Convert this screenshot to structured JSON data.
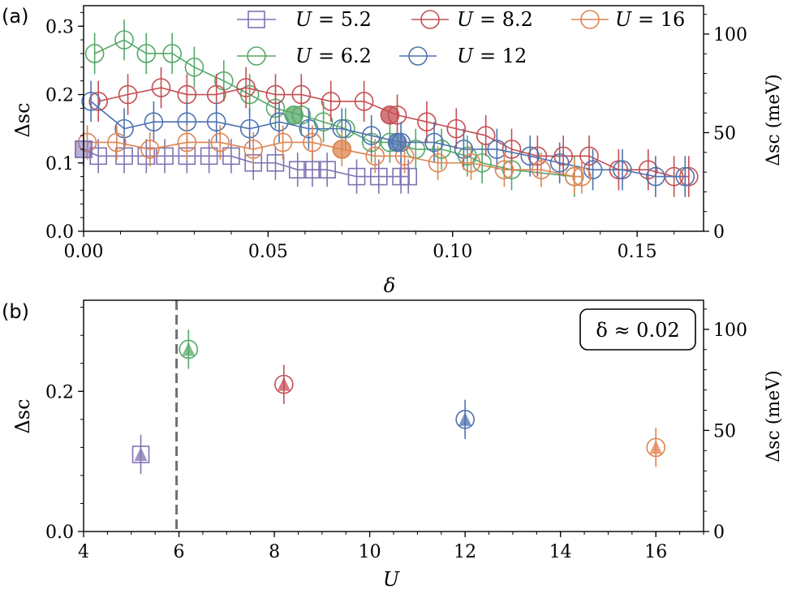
{
  "chart_data": [
    {
      "panel": "(a)",
      "type": "line",
      "xlabel": "δ",
      "ylabel": "Δsc",
      "ylabel_right": "Δsc (meV)",
      "xlim": [
        0.0,
        0.168
      ],
      "ylim": [
        0.0,
        0.33
      ],
      "ylim_right_meV": [
        0,
        113.3
      ],
      "x_ticks": [
        "0.00",
        "0.05",
        "0.10",
        "0.15"
      ],
      "x_tick_values": [
        0.0,
        0.05,
        0.1,
        0.15
      ],
      "y_ticks": [
        "0.0",
        "0.1",
        "0.2",
        "0.3"
      ],
      "y_tick_values": [
        0.0,
        0.1,
        0.2,
        0.3
      ],
      "y_right_ticks": [
        "0",
        "50",
        "100"
      ],
      "y_right_tick_values": [
        0,
        50,
        100
      ],
      "legend_position": "top",
      "series": [
        {
          "name": "U = 5.2",
          "label": "U",
          "value": "= 5.2",
          "color": "#8172b3",
          "marker": "square",
          "err": 0.025,
          "x": [
            0.0,
            0.004,
            0.011,
            0.017,
            0.022,
            0.028,
            0.034,
            0.04,
            0.046,
            0.052,
            0.058,
            0.062,
            0.066,
            0.074,
            0.08,
            0.086,
            0.088
          ],
          "y": [
            0.12,
            0.11,
            0.11,
            0.11,
            0.11,
            0.11,
            0.11,
            0.11,
            0.1,
            0.1,
            0.09,
            0.09,
            0.09,
            0.08,
            0.08,
            0.08,
            0.08
          ]
        },
        {
          "name": "U = 6.2",
          "label": "U",
          "value": "= 6.2",
          "color": "#55a868",
          "marker": "circle",
          "err": 0.03,
          "x": [
            0.003,
            0.011,
            0.017,
            0.024,
            0.03,
            0.038,
            0.045,
            0.052,
            0.059,
            0.065,
            0.071,
            0.078,
            0.083,
            0.09,
            0.097,
            0.104,
            0.108,
            0.116,
            0.133
          ],
          "y": [
            0.26,
            0.28,
            0.26,
            0.26,
            0.24,
            0.22,
            0.2,
            0.18,
            0.17,
            0.16,
            0.15,
            0.13,
            0.13,
            0.12,
            0.12,
            0.11,
            0.1,
            0.09,
            0.08
          ]
        },
        {
          "name": "U = 8.2",
          "label": "U",
          "value": "= 8.2",
          "color": "#c44e52",
          "marker": "circle",
          "err": 0.03,
          "x": [
            0.004,
            0.012,
            0.021,
            0.028,
            0.036,
            0.044,
            0.052,
            0.059,
            0.067,
            0.076,
            0.085,
            0.093,
            0.101,
            0.109,
            0.116,
            0.123,
            0.13,
            0.137,
            0.145,
            0.153,
            0.16,
            0.164
          ],
          "y": [
            0.19,
            0.2,
            0.21,
            0.2,
            0.2,
            0.21,
            0.2,
            0.2,
            0.19,
            0.19,
            0.17,
            0.16,
            0.15,
            0.14,
            0.12,
            0.11,
            0.11,
            0.11,
            0.09,
            0.09,
            0.08,
            0.08
          ]
        },
        {
          "name": "U = 12",
          "label": "U",
          "value": "= 12",
          "color": "#4c72b0",
          "marker": "circle",
          "err": 0.03,
          "x": [
            0.002,
            0.011,
            0.019,
            0.028,
            0.036,
            0.045,
            0.053,
            0.061,
            0.07,
            0.078,
            0.086,
            0.095,
            0.103,
            0.112,
            0.121,
            0.129,
            0.138,
            0.146,
            0.155,
            0.163
          ],
          "y": [
            0.19,
            0.15,
            0.16,
            0.16,
            0.16,
            0.15,
            0.16,
            0.15,
            0.15,
            0.14,
            0.13,
            0.13,
            0.12,
            0.12,
            0.11,
            0.1,
            0.09,
            0.09,
            0.08,
            0.08
          ]
        },
        {
          "name": "U = 16",
          "label": "U",
          "value": "= 16",
          "color": "#dd8452",
          "marker": "circle",
          "err": 0.025,
          "x": [
            0.001,
            0.009,
            0.018,
            0.028,
            0.037,
            0.046,
            0.054,
            0.062,
            0.07,
            0.079,
            0.087,
            0.096,
            0.105,
            0.114,
            0.124,
            0.133,
            0.135
          ],
          "y": [
            0.13,
            0.13,
            0.12,
            0.13,
            0.13,
            0.12,
            0.13,
            0.13,
            0.12,
            0.11,
            0.11,
            0.1,
            0.1,
            0.09,
            0.09,
            0.08,
            0.08
          ]
        }
      ],
      "filled_points": [
        {
          "series": "U = 5.2",
          "x": 0.0,
          "y": 0.12,
          "color": "#8172b3",
          "shape": "square"
        },
        {
          "series": "U = 6.2",
          "x": 0.057,
          "y": 0.17,
          "color": "#55a868",
          "shape": "circle"
        },
        {
          "series": "U = 8.2",
          "x": 0.083,
          "y": 0.17,
          "color": "#c44e52",
          "shape": "circle"
        },
        {
          "series": "U = 12",
          "x": 0.085,
          "y": 0.13,
          "color": "#4c72b0",
          "shape": "circle"
        },
        {
          "series": "U = 16",
          "x": 0.07,
          "y": 0.12,
          "color": "#dd8452",
          "shape": "circle"
        }
      ]
    },
    {
      "panel": "(b)",
      "type": "scatter",
      "xlabel": "U",
      "ylabel": "Δsc",
      "ylabel_right": "Δsc (meV)",
      "xlim": [
        4,
        17
      ],
      "ylim": [
        0.0,
        0.33
      ],
      "ylim_right_meV": [
        0,
        113.3
      ],
      "x_ticks": [
        "4",
        "6",
        "8",
        "10",
        "12",
        "14",
        "16"
      ],
      "x_tick_values": [
        4,
        6,
        8,
        10,
        12,
        14,
        16
      ],
      "y_ticks": [
        "0.0",
        "0.2"
      ],
      "y_tick_values": [
        0.0,
        0.2
      ],
      "y_right_ticks": [
        "0",
        "50",
        "100"
      ],
      "y_right_tick_values": [
        0,
        50,
        100
      ],
      "vline_x": 5.95,
      "annotation": "δ ≈ 0.02",
      "annotation_position": "top-right",
      "points": [
        {
          "U": 5.2,
          "y": 0.11,
          "err": 0.028,
          "color": "#8172b3",
          "marker": "square"
        },
        {
          "U": 6.2,
          "y": 0.26,
          "err": 0.028,
          "color": "#55a868",
          "marker": "circle"
        },
        {
          "U": 8.2,
          "y": 0.21,
          "err": 0.028,
          "color": "#c44e52",
          "marker": "circle"
        },
        {
          "U": 12,
          "y": 0.16,
          "err": 0.028,
          "color": "#4c72b0",
          "marker": "circle"
        },
        {
          "U": 16,
          "y": 0.12,
          "err": 0.028,
          "color": "#dd8452",
          "marker": "circle"
        }
      ]
    }
  ]
}
